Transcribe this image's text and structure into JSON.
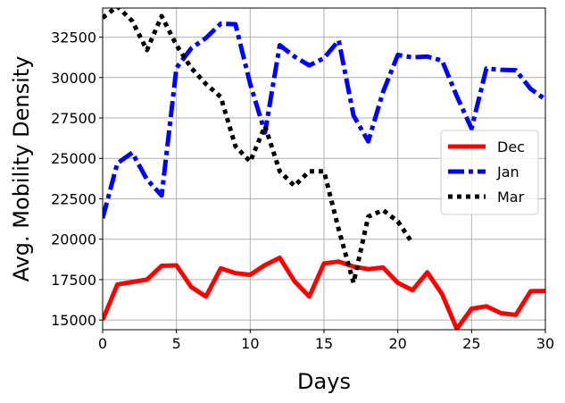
{
  "chart_data": {
    "type": "line",
    "title": "",
    "xlabel": "Days",
    "ylabel": "Avg. Mobility Density",
    "xlim": [
      0,
      30
    ],
    "ylim": [
      14400,
      34300
    ],
    "xticks": [
      0,
      5,
      10,
      15,
      20,
      25,
      30
    ],
    "yticks": [
      15000,
      17500,
      20000,
      22500,
      25000,
      27500,
      30000,
      32500
    ],
    "grid": true,
    "legend_position": "center-right",
    "series": [
      {
        "name": "Dec",
        "color": "#ff0000",
        "style": "solid",
        "x": [
          0,
          1,
          2,
          3,
          4,
          5,
          6,
          7,
          8,
          9,
          10,
          11,
          12,
          13,
          14,
          15,
          16,
          17,
          18,
          19,
          20,
          21,
          22,
          23,
          24,
          25,
          26,
          27,
          28,
          29,
          30
        ],
        "y": [
          15000,
          17200,
          17350,
          17500,
          18350,
          18380,
          17050,
          16450,
          18200,
          17900,
          17800,
          18400,
          18850,
          17400,
          16450,
          18500,
          18620,
          18300,
          18150,
          18250,
          17300,
          16850,
          17950,
          16600,
          14450,
          15700,
          15850,
          15420,
          15320,
          16780,
          16800
        ]
      },
      {
        "name": "Jan",
        "color": "#0000ff",
        "style": "dashdot",
        "x": [
          0,
          1,
          2,
          3,
          4,
          5,
          6,
          7,
          8,
          9,
          10,
          11,
          12,
          13,
          14,
          15,
          16,
          17,
          18,
          19,
          20,
          21,
          22,
          23,
          24,
          25,
          26,
          27,
          28,
          29,
          30
        ],
        "y": [
          21300,
          24700,
          25350,
          23700,
          22700,
          30600,
          31800,
          32450,
          33330,
          33300,
          29600,
          26600,
          32000,
          31300,
          30750,
          31200,
          32300,
          27650,
          26050,
          29100,
          31400,
          31250,
          31300,
          31050,
          28850,
          26850,
          30550,
          30480,
          30450,
          29300,
          28650
        ]
      },
      {
        "name": "Mar",
        "color": "#000000",
        "style": "dotted",
        "x": [
          0,
          1,
          2,
          3,
          4,
          5,
          6,
          7,
          8,
          9,
          10,
          11,
          12,
          13,
          14,
          15,
          16,
          17,
          18,
          19,
          20,
          21
        ],
        "y": [
          33700,
          34400,
          33500,
          31700,
          33800,
          32000,
          30600,
          29600,
          28800,
          25750,
          24800,
          27000,
          24200,
          23300,
          24200,
          24200,
          20600,
          17300,
          21400,
          21800,
          21100,
          19750
        ]
      }
    ]
  }
}
